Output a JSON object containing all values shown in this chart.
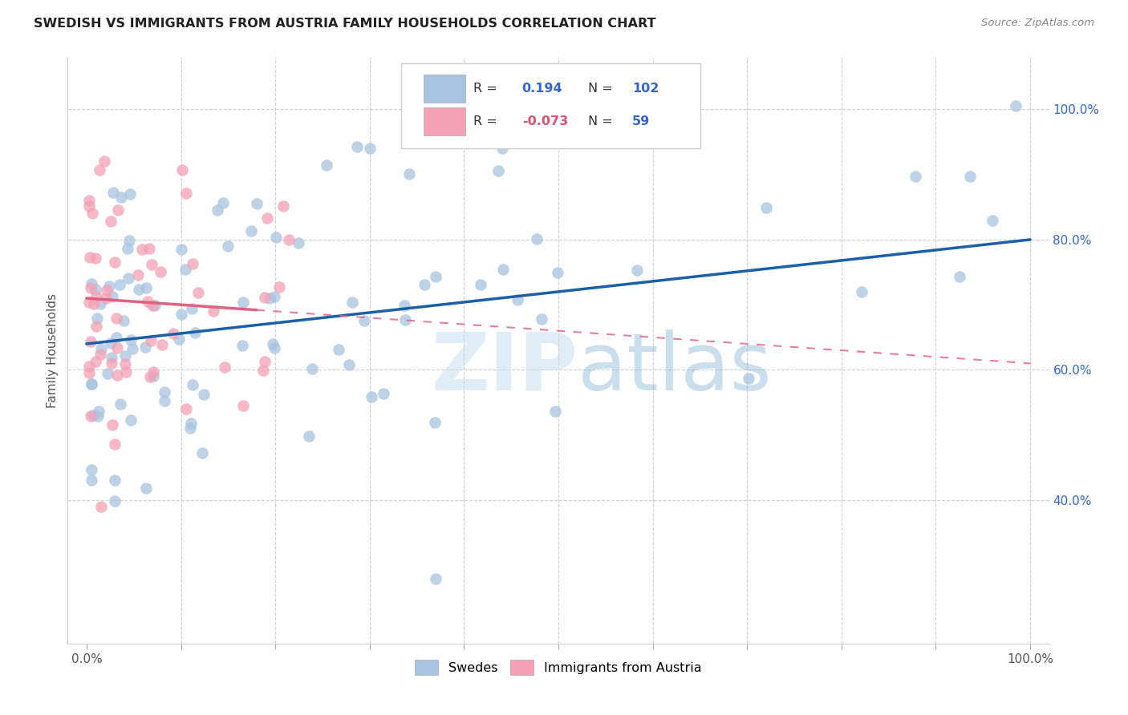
{
  "title": "SWEDISH VS IMMIGRANTS FROM AUSTRIA FAMILY HOUSEHOLDS CORRELATION CHART",
  "source": "Source: ZipAtlas.com",
  "ylabel": "Family Households",
  "r_blue": "0.194",
  "n_blue": "102",
  "r_pink": "-0.073",
  "n_pink": "59",
  "blue_color": "#a8c4e0",
  "pink_color": "#f4a0b5",
  "blue_line_color": "#1a5fa8",
  "pink_line_color": "#e06080",
  "watermark_color": "#c8dff0",
  "legend_label_blue": "Swedes",
  "legend_label_pink": "Immigrants from Austria",
  "xlim": [
    -0.02,
    1.02
  ],
  "ylim": [
    0.18,
    1.08
  ],
  "right_yticks": [
    0.4,
    0.6,
    0.8,
    1.0
  ],
  "right_yticklabels": [
    "40.0%",
    "60.0%",
    "80.0%",
    "100.0%"
  ],
  "xtick_values": [
    0.0,
    0.1,
    0.2,
    0.3,
    0.4,
    0.5,
    0.6,
    0.7,
    0.8,
    0.9,
    1.0
  ],
  "blue_seed": 77,
  "pink_seed": 99
}
